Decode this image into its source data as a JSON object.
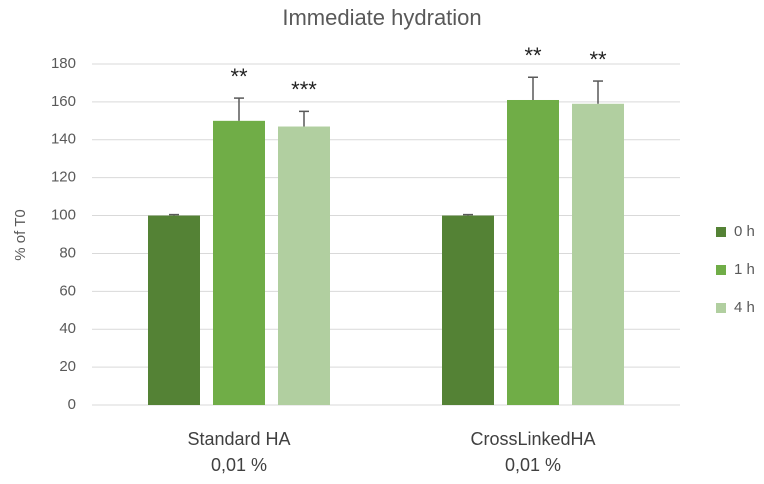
{
  "chart_data": {
    "type": "bar",
    "title": "Immediate hydration",
    "y_label": "% of T0",
    "categories": [
      "Standard HA\n0,01 %",
      "CrossLinkedHA\n0,01 %"
    ],
    "series": [
      {
        "name": "0 h",
        "color": "#548235",
        "values": [
          100,
          100
        ],
        "errors": [
          0.5,
          0.5
        ]
      },
      {
        "name": "1 h",
        "color": "#70ad47",
        "values": [
          150,
          161
        ],
        "errors": [
          12,
          12
        ],
        "annotations": [
          "**",
          "**"
        ]
      },
      {
        "name": "4 h",
        "color": "#b1cfa0",
        "values": [
          147,
          159
        ],
        "errors": [
          8,
          12
        ],
        "annotations": [
          "***",
          "**"
        ]
      }
    ],
    "ylim": [
      0,
      180
    ],
    "yticks": [
      0,
      20,
      40,
      60,
      80,
      100,
      120,
      140,
      160,
      180
    ],
    "grid": true,
    "legend": "right"
  }
}
